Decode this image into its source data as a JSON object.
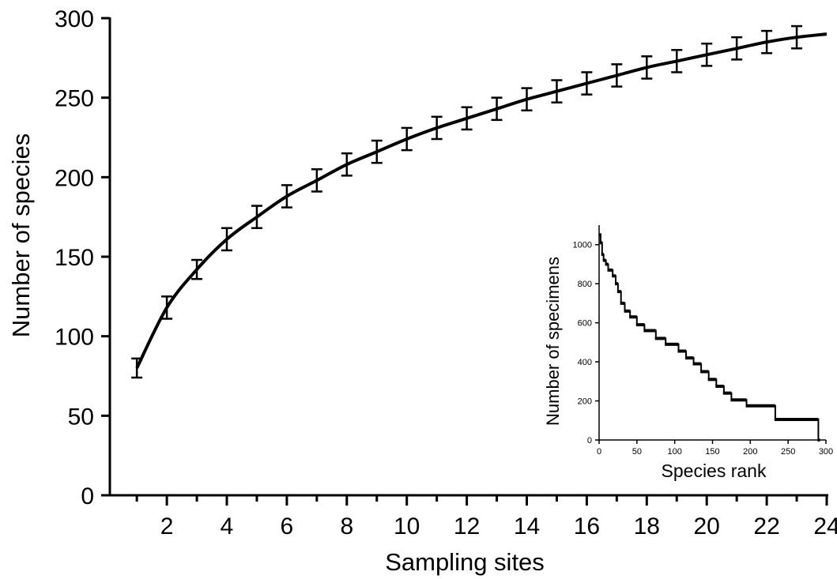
{
  "chart_data": [
    {
      "type": "line",
      "xlabel": "Sampling sites",
      "ylabel": "Number of species",
      "xlim": [
        0.1,
        24
      ],
      "ylim": [
        0,
        300
      ],
      "xticks": [
        2,
        4,
        6,
        8,
        10,
        12,
        14,
        16,
        18,
        20,
        22,
        24
      ],
      "yticks": [
        0,
        50,
        100,
        150,
        200,
        250,
        300
      ],
      "grid": false,
      "line_color": "#000000",
      "series": [
        {
          "x": [
            1,
            2,
            3,
            4,
            5,
            6,
            7,
            8,
            9,
            10,
            11,
            12,
            13,
            14,
            15,
            16,
            17,
            18,
            19,
            20,
            21,
            22,
            23,
            24
          ],
          "values": [
            80,
            118,
            142,
            161,
            175,
            188,
            198,
            208,
            216,
            224,
            231,
            237,
            243,
            249,
            254,
            259,
            264,
            269,
            273,
            277,
            281,
            285,
            288,
            290
          ],
          "error": [
            6,
            7,
            6,
            7,
            7,
            7,
            7,
            7,
            7,
            7,
            7,
            7,
            7,
            7,
            7,
            7,
            7,
            7,
            7,
            7,
            7,
            7,
            7,
            null
          ]
        }
      ]
    },
    {
      "type": "line",
      "xlabel": "Species rank",
      "ylabel": "Number of specimens",
      "xlim": [
        0,
        300
      ],
      "ylim": [
        0,
        1100
      ],
      "xticks": [
        0,
        50,
        100,
        150,
        200,
        250,
        300
      ],
      "yticks": [
        0,
        200,
        400,
        600,
        800,
        1000
      ],
      "grid": false,
      "line_color": "#000000",
      "series": [
        {
          "x": [
            1,
            2,
            4,
            6,
            9,
            12,
            18,
            22,
            25,
            29,
            34,
            41,
            50,
            60,
            75,
            88,
            105,
            115,
            125,
            135,
            145,
            155,
            165,
            175,
            195,
            233,
            290
          ],
          "values": [
            1050,
            1010,
            950,
            920,
            900,
            870,
            840,
            800,
            760,
            700,
            660,
            630,
            590,
            560,
            520,
            490,
            455,
            420,
            390,
            350,
            310,
            275,
            240,
            205,
            175,
            105,
            0
          ]
        }
      ]
    }
  ]
}
